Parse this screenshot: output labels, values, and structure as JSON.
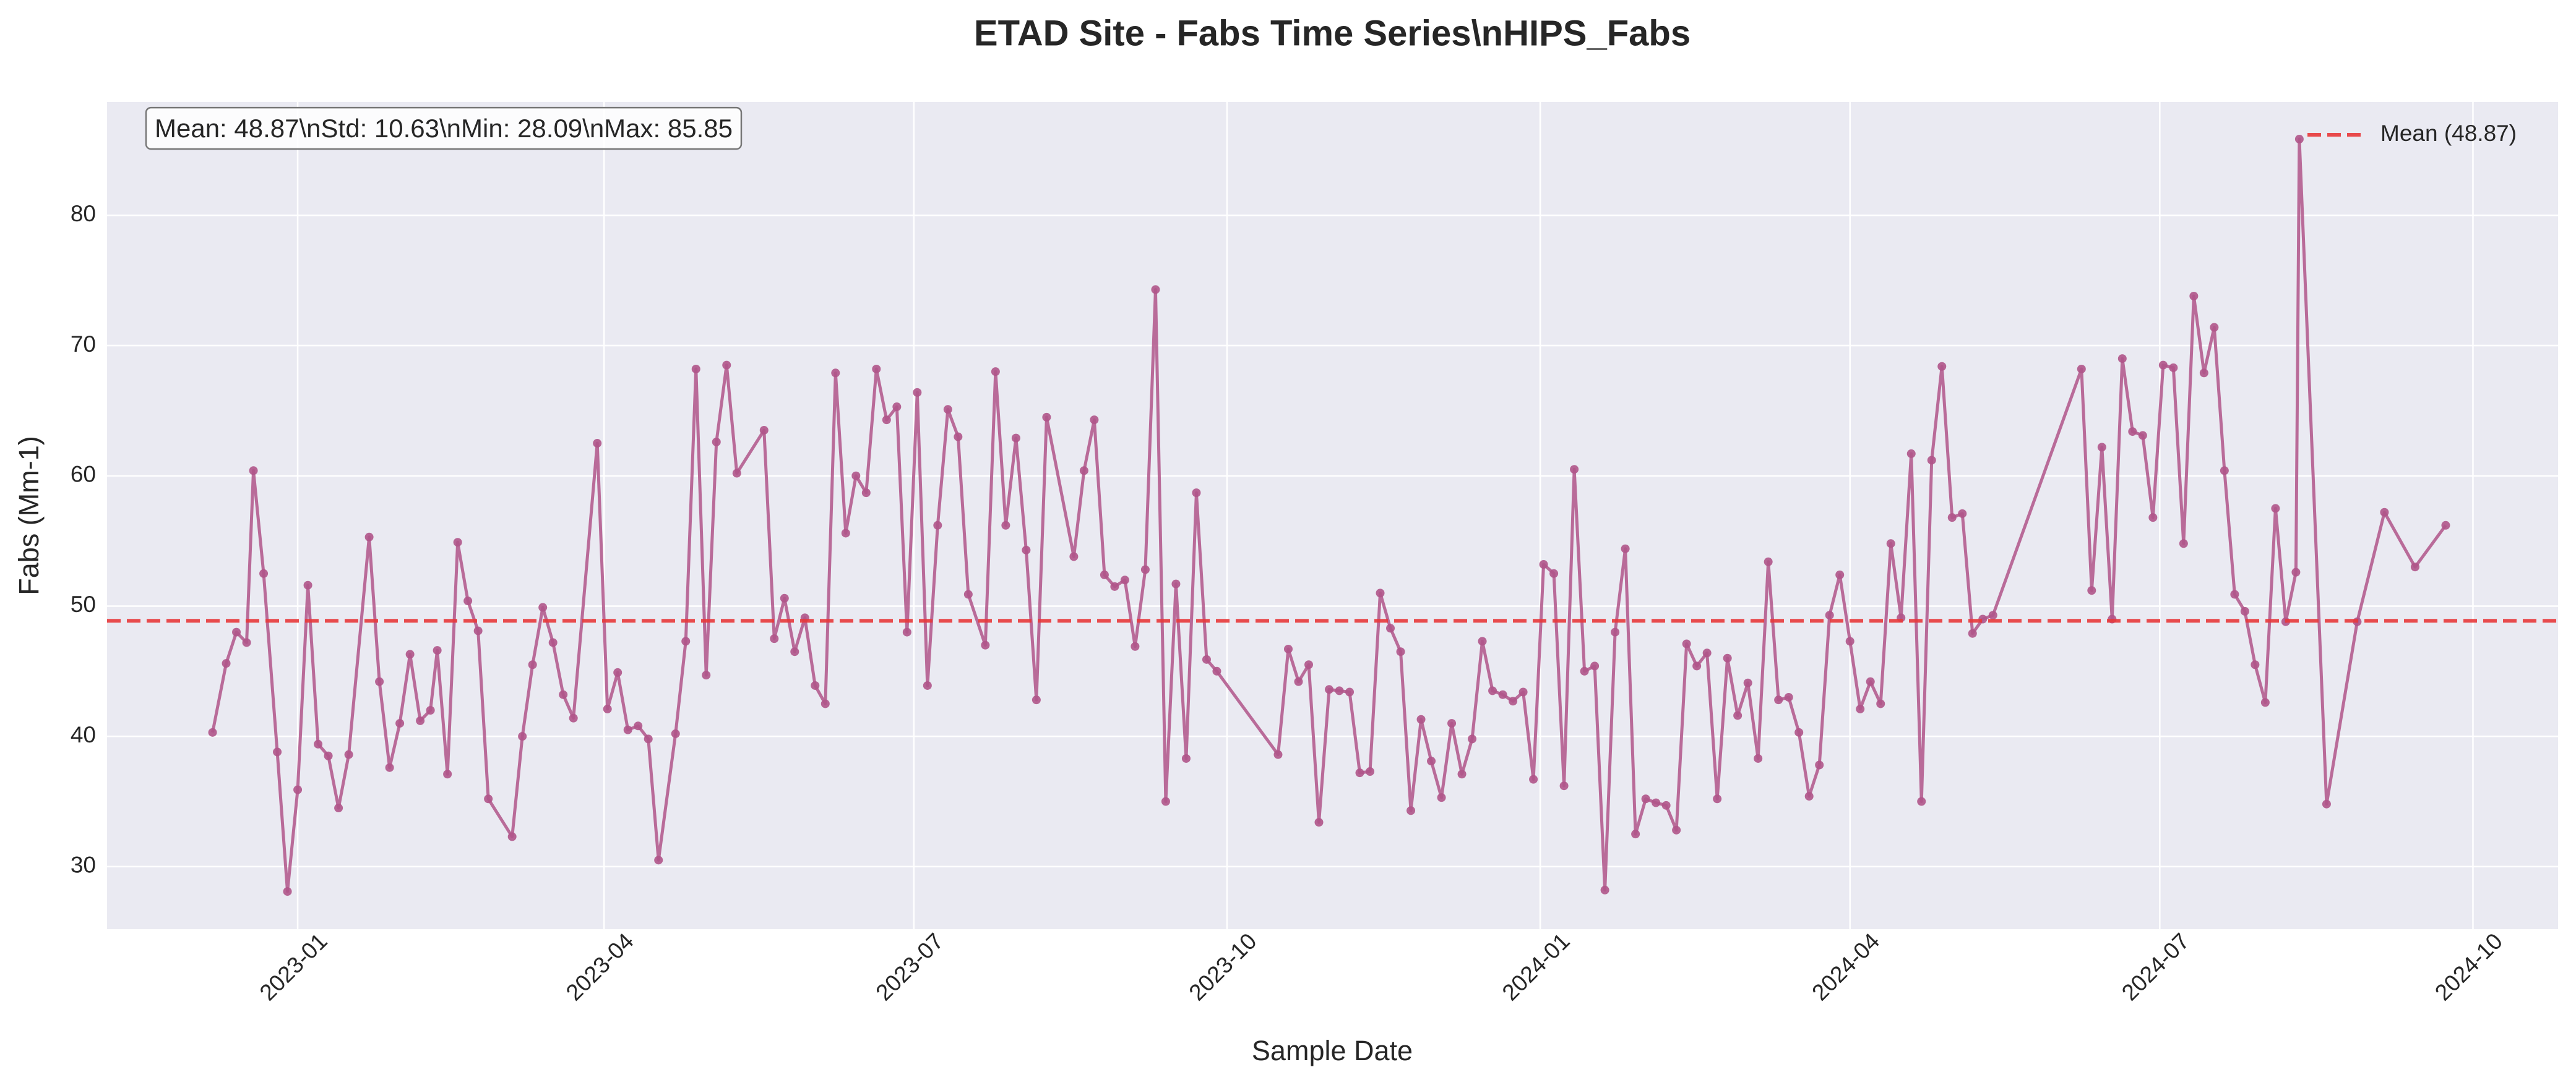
{
  "chart_data": {
    "type": "line",
    "title": "ETAD Site - Fabs Time Series\\nHIPS_Fabs",
    "x_label": "Sample Date",
    "y_label": "Fabs (Mm-1)",
    "stats_text": "Mean: 48.87\\nStd: 10.63\\nMin: 28.09\\nMax: 85.85",
    "grid": true,
    "legend_position": "upper right",
    "mean_line": {
      "value": 48.87,
      "label": "Mean (48.87)",
      "color": "#e8383a"
    },
    "xlim": [
      "2022-11-06",
      "2024-10-26"
    ],
    "xticks": [
      {
        "value": "2023-01-01",
        "label": "2023-01"
      },
      {
        "value": "2023-04-01",
        "label": "2023-04"
      },
      {
        "value": "2023-07-01",
        "label": "2023-07"
      },
      {
        "value": "2023-10-01",
        "label": "2023-10"
      },
      {
        "value": "2024-01-01",
        "label": "2024-01"
      },
      {
        "value": "2024-04-01",
        "label": "2024-04"
      },
      {
        "value": "2024-07-01",
        "label": "2024-07"
      },
      {
        "value": "2024-10-01",
        "label": "2024-10"
      }
    ],
    "ylim": [
      25.2,
      88.7
    ],
    "yticks": [
      30,
      40,
      50,
      60,
      70,
      80
    ],
    "x": [
      "2022-12-07",
      "2022-12-11",
      "2022-12-14",
      "2022-12-17",
      "2022-12-19",
      "2022-12-22",
      "2022-12-26",
      "2022-12-29",
      "2023-01-01",
      "2023-01-04",
      "2023-01-07",
      "2023-01-10",
      "2023-01-13",
      "2023-01-16",
      "2023-01-22",
      "2023-01-25",
      "2023-01-28",
      "2023-01-31",
      "2023-02-03",
      "2023-02-06",
      "2023-02-09",
      "2023-02-11",
      "2023-02-14",
      "2023-02-17",
      "2023-02-20",
      "2023-02-23",
      "2023-02-26",
      "2023-03-05",
      "2023-03-08",
      "2023-03-11",
      "2023-03-14",
      "2023-03-17",
      "2023-03-20",
      "2023-03-23",
      "2023-03-30",
      "2023-04-02",
      "2023-04-05",
      "2023-04-08",
      "2023-04-11",
      "2023-04-14",
      "2023-04-17",
      "2023-04-22",
      "2023-04-25",
      "2023-04-28",
      "2023-05-01",
      "2023-05-04",
      "2023-05-07",
      "2023-05-10",
      "2023-05-18",
      "2023-05-21",
      "2023-05-24",
      "2023-05-27",
      "2023-05-30",
      "2023-06-02",
      "2023-06-05",
      "2023-06-08",
      "2023-06-11",
      "2023-06-14",
      "2023-06-17",
      "2023-06-20",
      "2023-06-23",
      "2023-06-26",
      "2023-06-29",
      "2023-07-02",
      "2023-07-05",
      "2023-07-08",
      "2023-07-11",
      "2023-07-14",
      "2023-07-17",
      "2023-07-22",
      "2023-07-25",
      "2023-07-28",
      "2023-07-31",
      "2023-08-03",
      "2023-08-06",
      "2023-08-09",
      "2023-08-17",
      "2023-08-20",
      "2023-08-23",
      "2023-08-26",
      "2023-08-29",
      "2023-09-01",
      "2023-09-04",
      "2023-09-07",
      "2023-09-10",
      "2023-09-13",
      "2023-09-16",
      "2023-09-19",
      "2023-09-22",
      "2023-09-25",
      "2023-09-28",
      "2023-10-16",
      "2023-10-19",
      "2023-10-22",
      "2023-10-25",
      "2023-10-28",
      "2023-10-31",
      "2023-11-03",
      "2023-11-06",
      "2023-11-09",
      "2023-11-12",
      "2023-11-15",
      "2023-11-18",
      "2023-11-21",
      "2023-11-24",
      "2023-11-27",
      "2023-11-30",
      "2023-12-03",
      "2023-12-06",
      "2023-12-09",
      "2023-12-12",
      "2023-12-15",
      "2023-12-18",
      "2023-12-21",
      "2023-12-24",
      "2023-12-27",
      "2023-12-30",
      "2024-01-02",
      "2024-01-05",
      "2024-01-08",
      "2024-01-11",
      "2024-01-14",
      "2024-01-17",
      "2024-01-20",
      "2024-01-23",
      "2024-01-26",
      "2024-01-29",
      "2024-02-01",
      "2024-02-04",
      "2024-02-07",
      "2024-02-10",
      "2024-02-13",
      "2024-02-16",
      "2024-02-19",
      "2024-02-22",
      "2024-02-25",
      "2024-02-28",
      "2024-03-02",
      "2024-03-05",
      "2024-03-08",
      "2024-03-11",
      "2024-03-14",
      "2024-03-17",
      "2024-03-20",
      "2024-03-23",
      "2024-03-26",
      "2024-03-29",
      "2024-04-01",
      "2024-04-04",
      "2024-04-07",
      "2024-04-10",
      "2024-04-13",
      "2024-04-16",
      "2024-04-19",
      "2024-04-22",
      "2024-04-25",
      "2024-04-28",
      "2024-05-01",
      "2024-05-04",
      "2024-05-07",
      "2024-05-10",
      "2024-05-13",
      "2024-06-08",
      "2024-06-11",
      "2024-06-14",
      "2024-06-17",
      "2024-06-20",
      "2024-06-23",
      "2024-06-26",
      "2024-06-29",
      "2024-07-02",
      "2024-07-05",
      "2024-07-08",
      "2024-07-11",
      "2024-07-14",
      "2024-07-17",
      "2024-07-20",
      "2024-07-23",
      "2024-07-26",
      "2024-07-29",
      "2024-08-01",
      "2024-08-04",
      "2024-08-07",
      "2024-08-10",
      "2024-08-11",
      "2024-08-19",
      "2024-08-28",
      "2024-09-05",
      "2024-09-14",
      "2024-09-23"
    ],
    "series": [
      {
        "color": "#b0558a",
        "values": [
          40.3,
          45.6,
          48.0,
          47.2,
          60.4,
          52.5,
          38.8,
          28.09,
          35.9,
          51.6,
          39.4,
          38.5,
          34.5,
          38.6,
          55.3,
          44.2,
          37.6,
          41.0,
          46.3,
          41.2,
          42.0,
          46.6,
          37.1,
          54.9,
          50.4,
          48.1,
          35.2,
          32.3,
          40.0,
          45.5,
          49.9,
          47.2,
          43.2,
          41.4,
          62.5,
          42.1,
          44.9,
          40.5,
          40.8,
          39.8,
          30.5,
          40.2,
          47.3,
          68.2,
          44.7,
          62.6,
          68.5,
          60.2,
          63.5,
          47.5,
          50.6,
          46.5,
          49.1,
          43.9,
          42.5,
          67.9,
          55.6,
          60.0,
          58.7,
          68.2,
          64.3,
          65.3,
          48.0,
          66.4,
          43.9,
          56.2,
          65.1,
          63.0,
          50.9,
          47.0,
          68.0,
          56.2,
          62.9,
          54.3,
          42.8,
          64.5,
          53.8,
          60.4,
          64.3,
          52.4,
          51.5,
          52.0,
          46.9,
          52.8,
          74.3,
          35.0,
          51.7,
          38.3,
          58.7,
          45.9,
          45.0,
          38.6,
          46.7,
          44.2,
          45.5,
          33.4,
          43.6,
          43.5,
          43.4,
          37.2,
          37.3,
          51.0,
          48.3,
          46.5,
          34.3,
          41.3,
          38.1,
          35.3,
          41.0,
          37.1,
          39.8,
          47.3,
          43.5,
          43.2,
          42.7,
          43.4,
          36.7,
          53.2,
          52.5,
          36.2,
          60.5,
          45.0,
          45.4,
          28.2,
          48.0,
          54.4,
          32.5,
          35.2,
          34.9,
          34.7,
          32.8,
          47.1,
          45.4,
          46.4,
          35.2,
          46.0,
          41.6,
          44.1,
          38.3,
          53.4,
          42.8,
          43.0,
          40.3,
          35.4,
          37.8,
          49.3,
          52.4,
          47.3,
          42.1,
          44.2,
          42.5,
          54.8,
          49.1,
          61.7,
          35.0,
          61.2,
          68.4,
          56.8,
          57.1,
          47.9,
          49.0,
          49.3,
          68.2,
          51.2,
          62.2,
          49.0,
          69.0,
          63.4,
          63.1,
          56.8,
          68.5,
          68.3,
          54.8,
          73.8,
          67.9,
          71.4,
          60.4,
          50.9,
          49.6,
          45.5,
          42.6,
          57.5,
          48.8,
          52.6,
          85.85,
          34.8,
          48.8,
          57.2,
          53.0,
          56.2
        ]
      }
    ]
  }
}
